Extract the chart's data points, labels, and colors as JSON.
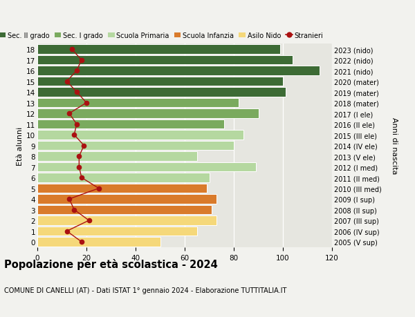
{
  "ages": [
    18,
    17,
    16,
    15,
    14,
    13,
    12,
    11,
    10,
    9,
    8,
    7,
    6,
    5,
    4,
    3,
    2,
    1,
    0
  ],
  "years_labels": [
    "2005 (V sup)",
    "2006 (IV sup)",
    "2007 (III sup)",
    "2008 (II sup)",
    "2009 (I sup)",
    "2010 (III med)",
    "2011 (II med)",
    "2012 (I med)",
    "2013 (V ele)",
    "2014 (IV ele)",
    "2015 (III ele)",
    "2016 (II ele)",
    "2017 (I ele)",
    "2018 (mater)",
    "2019 (mater)",
    "2020 (mater)",
    "2021 (nido)",
    "2022 (nido)",
    "2023 (nido)"
  ],
  "bar_values": [
    99,
    104,
    115,
    100,
    101,
    82,
    90,
    76,
    84,
    80,
    65,
    89,
    70,
    69,
    73,
    71,
    73,
    65,
    50
  ],
  "stranieri_values": [
    14,
    18,
    16,
    12,
    16,
    20,
    13,
    16,
    15,
    19,
    17,
    17,
    18,
    25,
    13,
    15,
    21,
    12,
    18
  ],
  "bar_colors": [
    "#3d6b35",
    "#3d6b35",
    "#3d6b35",
    "#3d6b35",
    "#3d6b35",
    "#7aaa5e",
    "#7aaa5e",
    "#7aaa5e",
    "#b5d8a0",
    "#b5d8a0",
    "#b5d8a0",
    "#b5d8a0",
    "#b5d8a0",
    "#d97b2b",
    "#d97b2b",
    "#d97b2b",
    "#f5d87a",
    "#f5d87a",
    "#f5d87a"
  ],
  "legend_labels": [
    "Sec. II grado",
    "Sec. I grado",
    "Scuola Primaria",
    "Scuola Infanzia",
    "Asilo Nido",
    "Stranieri"
  ],
  "legend_colors": [
    "#3d6b35",
    "#7aaa5e",
    "#b5d8a0",
    "#d97b2b",
    "#f5d87a",
    "#cc2200"
  ],
  "title": "Popolazione per età scolastica - 2024",
  "subtitle": "COMUNE DI CANELLI (AT) - Dati ISTAT 1° gennaio 2024 - Elaborazione TUTTITALIA.IT",
  "ylabel_left": "Età alunni",
  "ylabel_right": "Anni di nascita",
  "xlim": [
    0,
    120
  ],
  "stranieri_color": "#aa1111",
  "fig_bg": "#f2f2ee",
  "plot_bg": "#e6e6e0"
}
